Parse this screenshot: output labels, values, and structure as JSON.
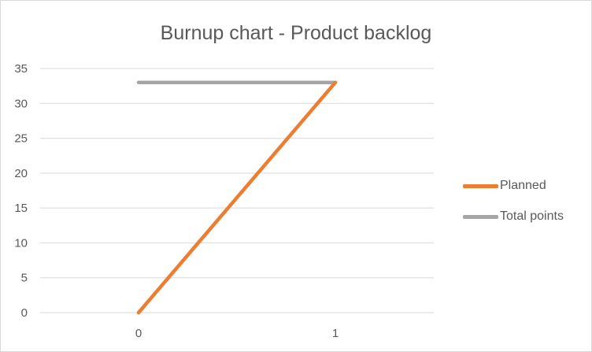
{
  "chart_data": {
    "type": "line",
    "title": "Burnup chart - Product backlog",
    "xlabel": "",
    "ylabel": "",
    "x": [
      0,
      1
    ],
    "x_tick_labels": [
      "0",
      "1"
    ],
    "ylim": [
      0,
      35
    ],
    "y_ticks": [
      0,
      5,
      10,
      15,
      20,
      25,
      30,
      35
    ],
    "y_tick_labels": [
      "0",
      "5",
      "10",
      "15",
      "20",
      "25",
      "30",
      "35"
    ],
    "grid": true,
    "legend_position": "right",
    "series": [
      {
        "name": "Planned",
        "values": [
          0,
          33
        ],
        "color": "#ed7d31"
      },
      {
        "name": "Total points",
        "values": [
          33,
          33
        ],
        "color": "#a5a5a5"
      }
    ]
  }
}
